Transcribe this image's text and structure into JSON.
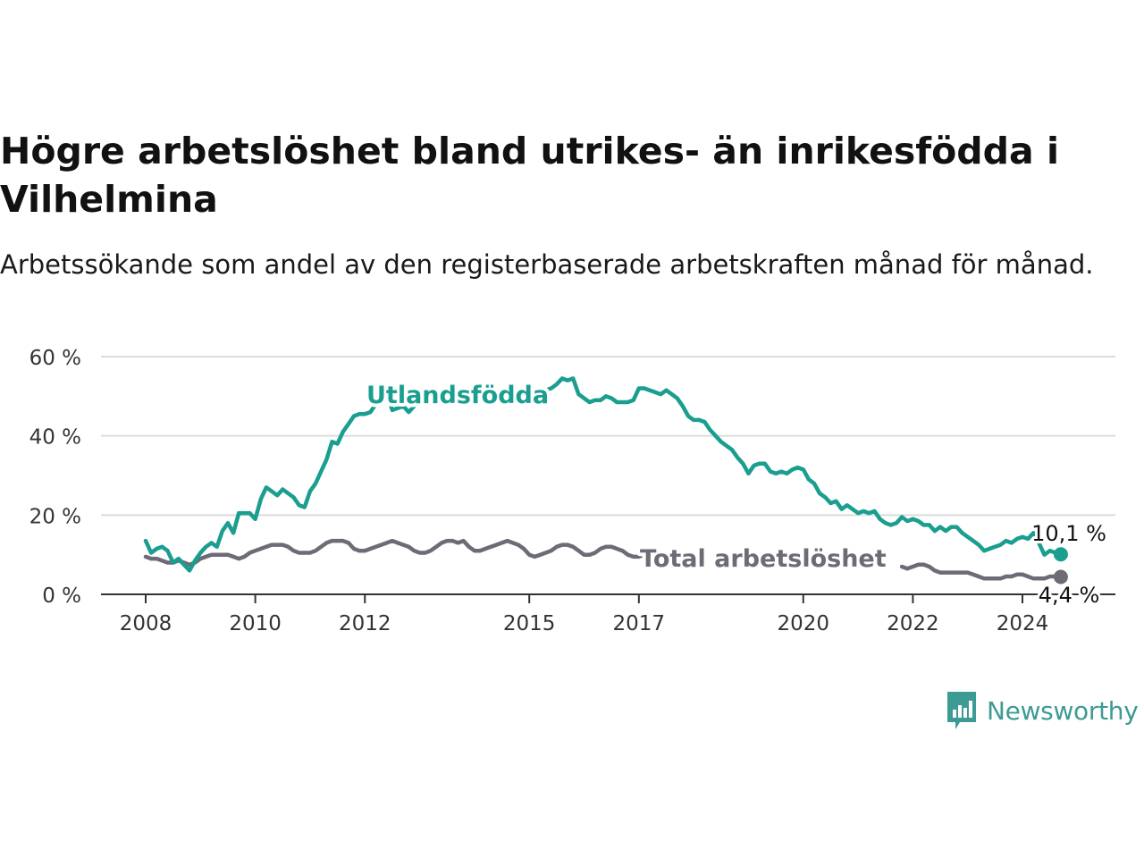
{
  "title": "Högre arbetslöshet bland utrikes- än inrikesfödda i Vilhelmina",
  "subtitle": "Arbetssökande som andel av den registerbaserade arbetskraften månad för månad.",
  "brand": {
    "name": "Newsworthy",
    "icon": "newsworthy-logo-icon",
    "color": "#3c9b93"
  },
  "chart_data": {
    "type": "line",
    "y_ticks": [
      {
        "value": 0,
        "label": "0 %"
      },
      {
        "value": 20,
        "label": "20 %"
      },
      {
        "value": 40,
        "label": "40 %"
      },
      {
        "value": 60,
        "label": "60 %"
      }
    ],
    "x_ticks": [
      {
        "value": 2008.0,
        "label": "2008"
      },
      {
        "value": 2010.0,
        "label": "2010"
      },
      {
        "value": 2012.0,
        "label": "2012"
      },
      {
        "value": 2015.0,
        "label": "2015"
      },
      {
        "value": 2017.0,
        "label": "2017"
      },
      {
        "value": 2020.0,
        "label": "2020"
      },
      {
        "value": 2022.0,
        "label": "2022"
      },
      {
        "value": 2024.0,
        "label": "2024"
      }
    ],
    "xlim": [
      2007.2,
      2025.7
    ],
    "ylim": [
      0,
      60
    ],
    "grid": true,
    "series": [
      {
        "name": "Utlandsfödda",
        "color": "#1a9e8f",
        "end_label": "10,1 %",
        "points": [
          [
            2008.0,
            13.5
          ],
          [
            2008.1,
            10.5
          ],
          [
            2008.2,
            11.5
          ],
          [
            2008.3,
            12.0
          ],
          [
            2008.4,
            11.0
          ],
          [
            2008.5,
            8.0
          ],
          [
            2008.6,
            9.0
          ],
          [
            2008.7,
            7.5
          ],
          [
            2008.8,
            6.0
          ],
          [
            2008.9,
            8.5
          ],
          [
            2009.0,
            10.5
          ],
          [
            2009.1,
            12.0
          ],
          [
            2009.2,
            13.0
          ],
          [
            2009.3,
            12.0
          ],
          [
            2009.4,
            16.0
          ],
          [
            2009.5,
            18.0
          ],
          [
            2009.6,
            15.5
          ],
          [
            2009.7,
            20.5
          ],
          [
            2009.8,
            20.5
          ],
          [
            2009.9,
            20.5
          ],
          [
            2010.0,
            19.0
          ],
          [
            2010.1,
            24.0
          ],
          [
            2010.2,
            27.0
          ],
          [
            2010.3,
            26.0
          ],
          [
            2010.4,
            25.0
          ],
          [
            2010.5,
            26.5
          ],
          [
            2010.6,
            25.5
          ],
          [
            2010.7,
            24.5
          ],
          [
            2010.8,
            22.5
          ],
          [
            2010.9,
            22.0
          ],
          [
            2011.0,
            26.0
          ],
          [
            2011.1,
            28.0
          ],
          [
            2011.2,
            31.0
          ],
          [
            2011.3,
            34.0
          ],
          [
            2011.4,
            38.5
          ],
          [
            2011.5,
            38.0
          ],
          [
            2011.6,
            41.0
          ],
          [
            2011.7,
            43.0
          ],
          [
            2011.8,
            45.0
          ],
          [
            2011.9,
            45.5
          ],
          [
            2012.0,
            45.5
          ],
          [
            2012.1,
            46.0
          ],
          [
            2012.2,
            48.0
          ],
          [
            2012.3,
            49.5
          ],
          [
            2012.4,
            51.0
          ],
          [
            2012.5,
            46.5
          ],
          [
            2012.6,
            47.0
          ],
          [
            2012.7,
            47.5
          ],
          [
            2012.8,
            46.0
          ],
          [
            2012.9,
            47.5
          ],
          [
            2015.2,
            51.0
          ],
          [
            2015.3,
            51.5
          ],
          [
            2015.4,
            52.0
          ],
          [
            2015.5,
            53.0
          ],
          [
            2015.6,
            54.5
          ],
          [
            2015.7,
            54.0
          ],
          [
            2015.8,
            54.5
          ],
          [
            2015.9,
            50.5
          ],
          [
            2016.0,
            49.5
          ],
          [
            2016.1,
            48.5
          ],
          [
            2016.2,
            49.0
          ],
          [
            2016.3,
            49.0
          ],
          [
            2016.4,
            50.0
          ],
          [
            2016.5,
            49.5
          ],
          [
            2016.6,
            48.5
          ],
          [
            2016.7,
            48.5
          ],
          [
            2016.8,
            48.5
          ],
          [
            2016.9,
            49.0
          ],
          [
            2017.0,
            52.0
          ],
          [
            2017.1,
            52.0
          ],
          [
            2017.2,
            51.5
          ],
          [
            2017.3,
            51.0
          ],
          [
            2017.4,
            50.5
          ],
          [
            2017.5,
            51.5
          ],
          [
            2017.6,
            50.5
          ],
          [
            2017.7,
            49.5
          ],
          [
            2017.8,
            47.5
          ],
          [
            2017.9,
            45.0
          ],
          [
            2018.0,
            44.0
          ],
          [
            2018.1,
            44.0
          ],
          [
            2018.2,
            43.5
          ],
          [
            2018.3,
            41.5
          ],
          [
            2018.4,
            40.0
          ],
          [
            2018.5,
            38.5
          ],
          [
            2018.6,
            37.5
          ],
          [
            2018.7,
            36.5
          ],
          [
            2018.8,
            34.5
          ],
          [
            2018.9,
            33.0
          ],
          [
            2019.0,
            30.5
          ],
          [
            2019.1,
            32.5
          ],
          [
            2019.2,
            33.0
          ],
          [
            2019.3,
            33.0
          ],
          [
            2019.4,
            31.0
          ],
          [
            2019.5,
            30.5
          ],
          [
            2019.6,
            31.0
          ],
          [
            2019.7,
            30.5
          ],
          [
            2019.8,
            31.5
          ],
          [
            2019.9,
            32.0
          ],
          [
            2020.0,
            31.5
          ],
          [
            2020.1,
            29.0
          ],
          [
            2020.2,
            28.0
          ],
          [
            2020.3,
            25.5
          ],
          [
            2020.4,
            24.5
          ],
          [
            2020.5,
            23.0
          ],
          [
            2020.6,
            23.5
          ],
          [
            2020.7,
            21.5
          ],
          [
            2020.8,
            22.5
          ],
          [
            2020.9,
            21.5
          ],
          [
            2021.0,
            20.5
          ],
          [
            2021.1,
            21.0
          ],
          [
            2021.2,
            20.5
          ],
          [
            2021.3,
            21.0
          ],
          [
            2021.4,
            19.0
          ],
          [
            2021.5,
            18.0
          ],
          [
            2021.6,
            17.5
          ],
          [
            2021.7,
            18.0
          ],
          [
            2021.8,
            19.5
          ],
          [
            2021.9,
            18.5
          ],
          [
            2022.0,
            19.0
          ],
          [
            2022.1,
            18.5
          ],
          [
            2022.2,
            17.5
          ],
          [
            2022.3,
            17.5
          ],
          [
            2022.4,
            16.0
          ],
          [
            2022.5,
            17.0
          ],
          [
            2022.6,
            16.0
          ],
          [
            2022.7,
            17.0
          ],
          [
            2022.8,
            17.0
          ],
          [
            2022.9,
            15.5
          ],
          [
            2023.0,
            14.5
          ],
          [
            2023.1,
            13.5
          ],
          [
            2023.2,
            12.5
          ],
          [
            2023.3,
            11.0
          ],
          [
            2023.4,
            11.5
          ],
          [
            2023.5,
            12.0
          ],
          [
            2023.6,
            12.5
          ],
          [
            2023.7,
            13.5
          ],
          [
            2023.8,
            13.0
          ],
          [
            2023.9,
            14.0
          ],
          [
            2024.0,
            14.5
          ],
          [
            2024.1,
            14.0
          ],
          [
            2024.2,
            15.5
          ],
          [
            2024.3,
            13.0
          ],
          [
            2024.4,
            10.0
          ],
          [
            2024.5,
            11.0
          ],
          [
            2024.6,
            10.5
          ],
          [
            2024.7,
            10.1
          ]
        ]
      },
      {
        "name": "Total arbetslöshet",
        "color": "#6e6b76",
        "end_label": "4,4 %",
        "points": [
          [
            2008.0,
            9.5
          ],
          [
            2008.1,
            9.0
          ],
          [
            2008.2,
            9.0
          ],
          [
            2008.3,
            8.5
          ],
          [
            2008.4,
            8.0
          ],
          [
            2008.5,
            8.0
          ],
          [
            2008.6,
            8.5
          ],
          [
            2008.7,
            8.0
          ],
          [
            2008.8,
            7.5
          ],
          [
            2008.9,
            8.0
          ],
          [
            2009.0,
            9.0
          ],
          [
            2009.1,
            9.5
          ],
          [
            2009.2,
            10.0
          ],
          [
            2009.3,
            10.0
          ],
          [
            2009.4,
            10.0
          ],
          [
            2009.5,
            10.0
          ],
          [
            2009.6,
            9.5
          ],
          [
            2009.7,
            9.0
          ],
          [
            2009.8,
            9.5
          ],
          [
            2009.9,
            10.5
          ],
          [
            2010.0,
            11.0
          ],
          [
            2010.1,
            11.5
          ],
          [
            2010.2,
            12.0
          ],
          [
            2010.3,
            12.5
          ],
          [
            2010.4,
            12.5
          ],
          [
            2010.5,
            12.5
          ],
          [
            2010.6,
            12.0
          ],
          [
            2010.7,
            11.0
          ],
          [
            2010.8,
            10.5
          ],
          [
            2010.9,
            10.5
          ],
          [
            2011.0,
            10.5
          ],
          [
            2011.1,
            11.0
          ],
          [
            2011.2,
            12.0
          ],
          [
            2011.3,
            13.0
          ],
          [
            2011.4,
            13.5
          ],
          [
            2011.5,
            13.5
          ],
          [
            2011.6,
            13.5
          ],
          [
            2011.7,
            13.0
          ],
          [
            2011.8,
            11.5
          ],
          [
            2011.9,
            11.0
          ],
          [
            2012.0,
            11.0
          ],
          [
            2012.1,
            11.5
          ],
          [
            2012.2,
            12.0
          ],
          [
            2012.3,
            12.5
          ],
          [
            2012.4,
            13.0
          ],
          [
            2012.5,
            13.5
          ],
          [
            2012.6,
            13.0
          ],
          [
            2012.7,
            12.5
          ],
          [
            2012.8,
            12.0
          ],
          [
            2012.9,
            11.0
          ],
          [
            2013.0,
            10.5
          ],
          [
            2013.1,
            10.5
          ],
          [
            2013.2,
            11.0
          ],
          [
            2013.3,
            12.0
          ],
          [
            2013.4,
            13.0
          ],
          [
            2013.5,
            13.5
          ],
          [
            2013.6,
            13.5
          ],
          [
            2013.7,
            13.0
          ],
          [
            2013.8,
            13.5
          ],
          [
            2013.9,
            12.0
          ],
          [
            2014.0,
            11.0
          ],
          [
            2014.1,
            11.0
          ],
          [
            2014.2,
            11.5
          ],
          [
            2014.3,
            12.0
          ],
          [
            2014.4,
            12.5
          ],
          [
            2014.5,
            13.0
          ],
          [
            2014.6,
            13.5
          ],
          [
            2014.7,
            13.0
          ],
          [
            2014.8,
            12.5
          ],
          [
            2014.9,
            11.5
          ],
          [
            2015.0,
            10.0
          ],
          [
            2015.1,
            9.5
          ],
          [
            2015.2,
            10.0
          ],
          [
            2015.3,
            10.5
          ],
          [
            2015.4,
            11.0
          ],
          [
            2015.5,
            12.0
          ],
          [
            2015.6,
            12.5
          ],
          [
            2015.7,
            12.5
          ],
          [
            2015.8,
            12.0
          ],
          [
            2015.9,
            11.0
          ],
          [
            2016.0,
            10.0
          ],
          [
            2016.1,
            10.0
          ],
          [
            2016.2,
            10.5
          ],
          [
            2016.3,
            11.5
          ],
          [
            2016.4,
            12.0
          ],
          [
            2016.5,
            12.0
          ],
          [
            2016.6,
            11.5
          ],
          [
            2016.7,
            11.0
          ],
          [
            2016.8,
            10.0
          ],
          [
            2016.9,
            9.5
          ],
          [
            2017.0,
            9.5
          ],
          [
            2017.1,
            10.0
          ],
          [
            2017.2,
            11.5
          ],
          [
            2021.8,
            7.0
          ],
          [
            2021.9,
            6.5
          ],
          [
            2022.0,
            7.0
          ],
          [
            2022.1,
            7.5
          ],
          [
            2022.2,
            7.5
          ],
          [
            2022.3,
            7.0
          ],
          [
            2022.4,
            6.0
          ],
          [
            2022.5,
            5.5
          ],
          [
            2022.6,
            5.5
          ],
          [
            2022.7,
            5.5
          ],
          [
            2022.8,
            5.5
          ],
          [
            2022.9,
            5.5
          ],
          [
            2023.0,
            5.5
          ],
          [
            2023.1,
            5.0
          ],
          [
            2023.2,
            4.5
          ],
          [
            2023.3,
            4.0
          ],
          [
            2023.4,
            4.0
          ],
          [
            2023.5,
            4.0
          ],
          [
            2023.6,
            4.0
          ],
          [
            2023.7,
            4.5
          ],
          [
            2023.8,
            4.5
          ],
          [
            2023.9,
            5.0
          ],
          [
            2024.0,
            5.0
          ],
          [
            2024.1,
            4.5
          ],
          [
            2024.2,
            4.0
          ],
          [
            2024.3,
            4.0
          ],
          [
            2024.4,
            4.0
          ],
          [
            2024.5,
            4.5
          ],
          [
            2024.6,
            4.5
          ],
          [
            2024.7,
            4.4
          ]
        ]
      }
    ]
  }
}
